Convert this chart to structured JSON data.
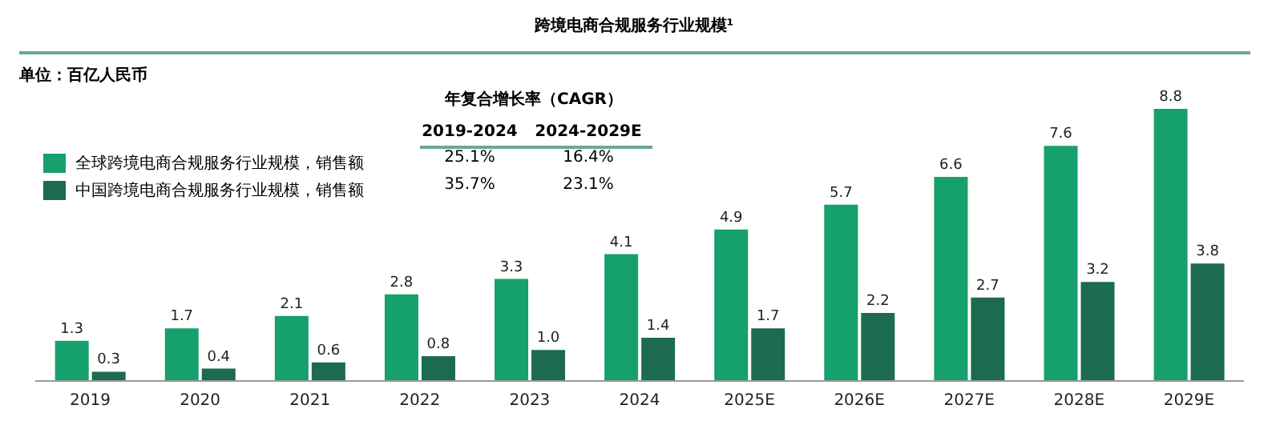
{
  "chart_data": {
    "type": "bar",
    "title": "跨境电商合规服务行业规模¹",
    "categories": [
      "2019",
      "2020",
      "2021",
      "2022",
      "2023",
      "2024",
      "2025E",
      "2026E",
      "2027E",
      "2028E",
      "2029E"
    ],
    "series": [
      {
        "name": "全球跨境电商合规服务行业规模，销售额",
        "color": "#16a06c",
        "values": [
          1.3,
          1.7,
          2.1,
          2.8,
          3.3,
          4.1,
          4.9,
          5.7,
          6.6,
          7.6,
          8.8
        ],
        "value_labels": [
          "1.3",
          "1.7",
          "2.1",
          "2.8",
          "3.3",
          "4.1",
          "4.9",
          "5.7",
          "6.6",
          "7.6",
          "8.8"
        ]
      },
      {
        "name": "中国跨境电商合规服务行业规模，销售额",
        "color": "#1c6b50",
        "values": [
          0.3,
          0.4,
          0.6,
          0.8,
          1.0,
          1.4,
          1.7,
          2.2,
          2.7,
          3.2,
          3.8
        ],
        "value_labels": [
          "0.3",
          "0.4",
          "0.6",
          "0.8",
          "1.0",
          "1.4",
          "1.7",
          "2.2",
          "2.7",
          "3.2",
          "3.8"
        ]
      }
    ],
    "legend": "top left",
    "grid": false,
    "annotations": [
      "单位：百亿人民币",
      "年复合增长率（CAGR）",
      "2019-2024",
      "2024-2029E",
      "25.1%",
      "16.4%",
      "35.7%",
      "23.1%"
    ]
  }
}
